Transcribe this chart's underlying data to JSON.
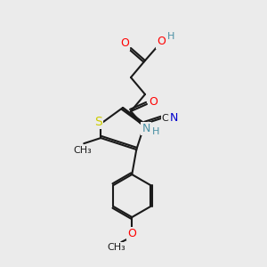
{
  "bg_color": "#ebebeb",
  "bond_color": "#1a1a1a",
  "atom_colors": {
    "O": "#ff0000",
    "N": "#4a90a4",
    "S": "#cccc00",
    "C": "#1a1a1a",
    "H": "#4a90a4",
    "CN_N": "#0000cc"
  },
  "figsize": [
    3.0,
    3.0
  ],
  "dpi": 100
}
